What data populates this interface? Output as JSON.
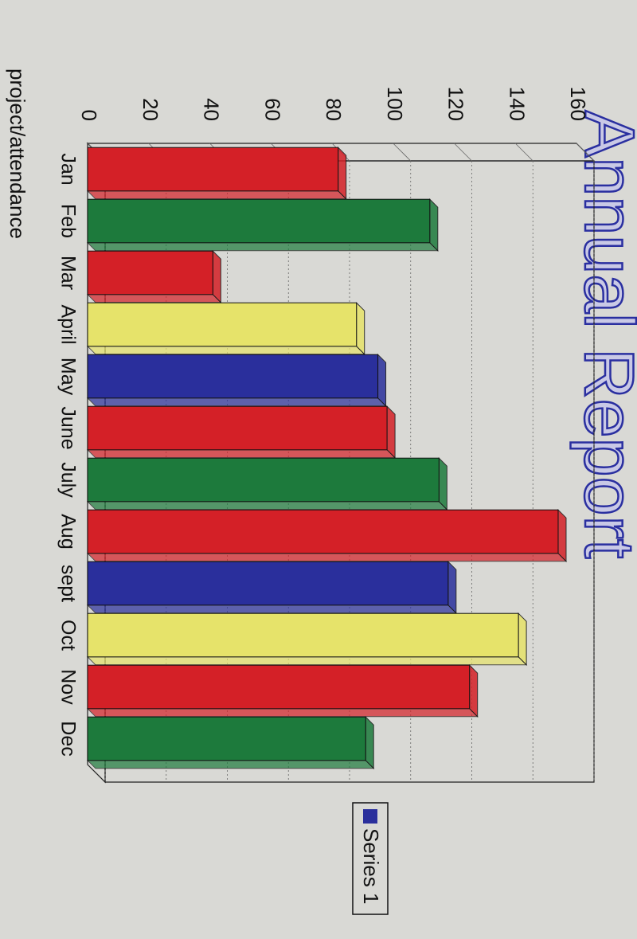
{
  "chart_data": {
    "type": "bar",
    "title": "Annual Report",
    "categories": [
      "Jan",
      "Feb",
      "Mar",
      "April",
      "May",
      "June",
      "July",
      "Aug",
      "sept",
      "Oct",
      "Nov",
      "Dec"
    ],
    "series": [
      {
        "name": "Series 1",
        "color": "#2a2f9c",
        "colors": [
          "#d42027",
          "#1d7a3c",
          "#d42027",
          "#e6e36a",
          "#2a2f9c",
          "#d42027",
          "#1d7a3c",
          "#d42027",
          "#2a2f9c",
          "#e6e36a",
          "#d42027",
          "#1d7a3c"
        ],
        "values": [
          82,
          112,
          41,
          88,
          95,
          98,
          115,
          154,
          118,
          141,
          125,
          91
        ]
      }
    ],
    "ylim": [
      0,
      160
    ],
    "yticks": [
      0,
      20,
      40,
      60,
      80,
      100,
      120,
      140,
      160
    ],
    "grid": true,
    "legend": "right",
    "footer": "project/attendance"
  }
}
